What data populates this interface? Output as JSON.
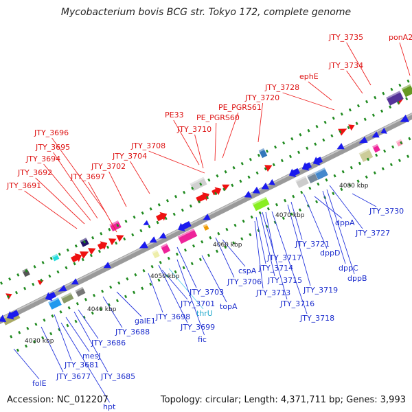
{
  "header": {
    "title": "Mycobacterium bovis BCG str. Tokyo 172, complete genome"
  },
  "footer": {
    "accession": "Accession: NC_012207",
    "topology": "Topology: circular; Length: 4,371,711 bp; Genes: 3,993"
  },
  "colors": {
    "forward_label": "#dd1111",
    "reverse_label": "#1a2bcc",
    "rna_label": "#22aacc",
    "backbone": "#888888",
    "tick": "#1f8a1f"
  },
  "kbp_ticks": [
    "4030 kbp",
    "4040 kbp",
    "4050 kbp",
    "4060 kbp",
    "4070 kbp",
    "4080 kbp"
  ],
  "forward_labels": [
    "JTY_3691",
    "JTY_3692",
    "JTY_3694",
    "JTY_3695",
    "JTY_3696",
    "JTY_3697",
    "JTY_3702",
    "JTY_3704",
    "JTY_3708",
    "JTY_3710",
    "PE33",
    "PE_PGRS60",
    "PE_PGRS61",
    "JTY_3720",
    "JTY_3728",
    "ephE",
    "JTY_3734",
    "JTY_3735",
    "ponA2"
  ],
  "reverse_labels": [
    "folE",
    "JTY_3677",
    "JTY_3681",
    "hpt",
    "mesJ",
    "JTY_3685",
    "JTY_3686",
    "JTY_3688",
    "galE1",
    "JTY_3698",
    "JTY_3699",
    "JTY_3701",
    "thrU",
    "fic",
    "JTY_3703",
    "topA",
    "JTY_3706",
    "cspA",
    "JTY_3713",
    "JTY_3714",
    "JTY_3715",
    "JTY_3716",
    "JTY_3717",
    "JTY_3718",
    "JTY_3719",
    "JTY_3721",
    "dppD",
    "dppA",
    "dppC",
    "dppB",
    "JTY_3727",
    "JTY_3730"
  ]
}
